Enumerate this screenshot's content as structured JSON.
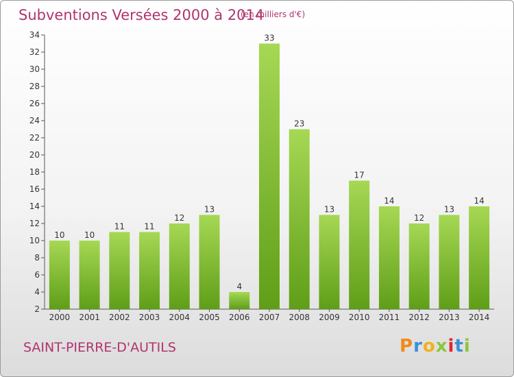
{
  "header": {
    "title": "Subventions Versées 2000 à 2014",
    "unit": "(en milliers d'€)"
  },
  "footer": {
    "place": "SAINT-PIERRE-D'AUTILS",
    "logo_letters": [
      "P",
      "r",
      "o",
      "x",
      "i",
      "t",
      "i"
    ]
  },
  "colors": {
    "title": "#b0336e",
    "bar_top": "#a6d854",
    "bar_bottom": "#5f9e18",
    "axis": "#555555"
  },
  "chart_data": {
    "type": "bar",
    "title": "Subventions Versées 2000 à 2014",
    "subtitle": "(en milliers d'€)",
    "xlabel": "",
    "ylabel": "",
    "categories": [
      "2000",
      "2001",
      "2002",
      "2003",
      "2004",
      "2005",
      "2006",
      "2007",
      "2008",
      "2009",
      "2010",
      "2011",
      "2012",
      "2013",
      "2014"
    ],
    "values": [
      10,
      10,
      11,
      11,
      12,
      13,
      4,
      33,
      23,
      13,
      17,
      14,
      12,
      13,
      14
    ],
    "ylim": [
      2,
      34
    ],
    "yticks": [
      2,
      4,
      6,
      8,
      10,
      12,
      14,
      16,
      18,
      20,
      22,
      24,
      26,
      28,
      30,
      32,
      34
    ],
    "grid": false,
    "data_labels": true
  }
}
